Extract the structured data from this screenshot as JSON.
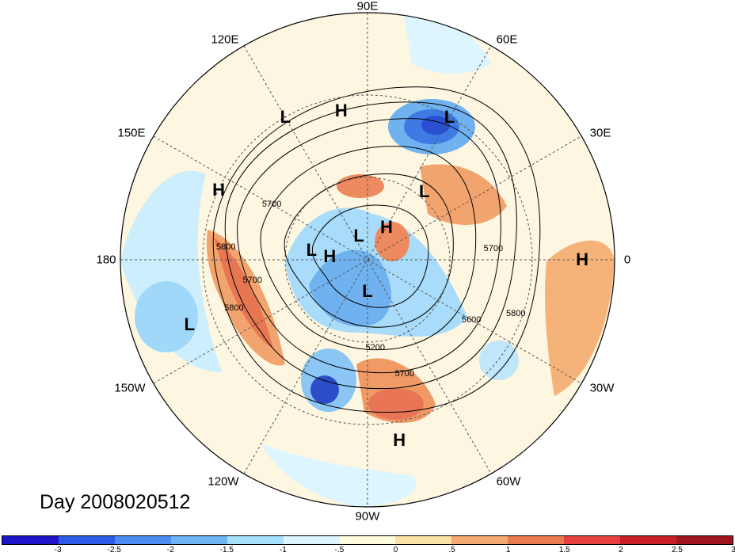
{
  "date_label": "Day 2008020512",
  "lon_labels": {
    "deg90e": "90E",
    "deg60e": "60E",
    "deg30e": "30E",
    "deg0": "0",
    "deg30w": "30W",
    "deg60w": "60W",
    "deg90w": "90W",
    "deg120w": "120W",
    "deg150w": "150W",
    "deg180": "180",
    "deg150e": "150E",
    "deg120e": "120E"
  },
  "pressure_centers": [
    {
      "type": "L",
      "lon": 60,
      "lat": 38
    },
    {
      "type": "L",
      "lon": 120,
      "lat": 38
    },
    {
      "type": "H",
      "lon": 100,
      "lat": 42
    },
    {
      "type": "L",
      "lon": 50,
      "lat": 62
    },
    {
      "type": "H",
      "lon": 155,
      "lat": 38
    },
    {
      "type": "L",
      "lon": 170,
      "lat": 72
    },
    {
      "type": "L",
      "lon": 110,
      "lat": 82
    },
    {
      "type": "H",
      "lon": 60,
      "lat": 78
    },
    {
      "type": "H",
      "lon": 175,
      "lat": 78
    },
    {
      "type": "H",
      "lon": 0,
      "lat": 22
    },
    {
      "type": "L",
      "lon": -160,
      "lat": 30
    },
    {
      "type": "L",
      "lon": -90,
      "lat": 80
    },
    {
      "type": "H",
      "lon": -80,
      "lat": 32
    }
  ],
  "contour_labels": [
    {
      "text": "5700",
      "lon": 150,
      "lat": 55
    },
    {
      "text": "5800",
      "lon": 175,
      "lat": 45
    },
    {
      "text": "5700",
      "lon": -170,
      "lat": 53
    },
    {
      "text": "5800",
      "lon": -160,
      "lat": 45
    },
    {
      "text": "5200",
      "lon": -85,
      "lat": 62
    },
    {
      "text": "5700",
      "lon": -72,
      "lat": 52
    },
    {
      "text": "5600",
      "lon": -30,
      "lat": 52
    },
    {
      "text": "5800",
      "lon": -20,
      "lat": 40
    },
    {
      "text": "5700",
      "lon": 5,
      "lat": 50
    }
  ],
  "colorbar": {
    "colors": [
      "#1e14c8",
      "#2d5ae6",
      "#4b8cf0",
      "#6eb4f5",
      "#a5e1fa",
      "#dcf5ff",
      "#fffadc",
      "#fae1a5",
      "#f5aa73",
      "#ec7a50",
      "#e6413c",
      "#c81e28",
      "#a0141e"
    ],
    "ticks": [
      "-3",
      "-2.5",
      "-2",
      "-1.5",
      "-1",
      "-.5",
      "0",
      ".5",
      "1",
      "1.5",
      "2",
      "2.5",
      "3"
    ]
  }
}
